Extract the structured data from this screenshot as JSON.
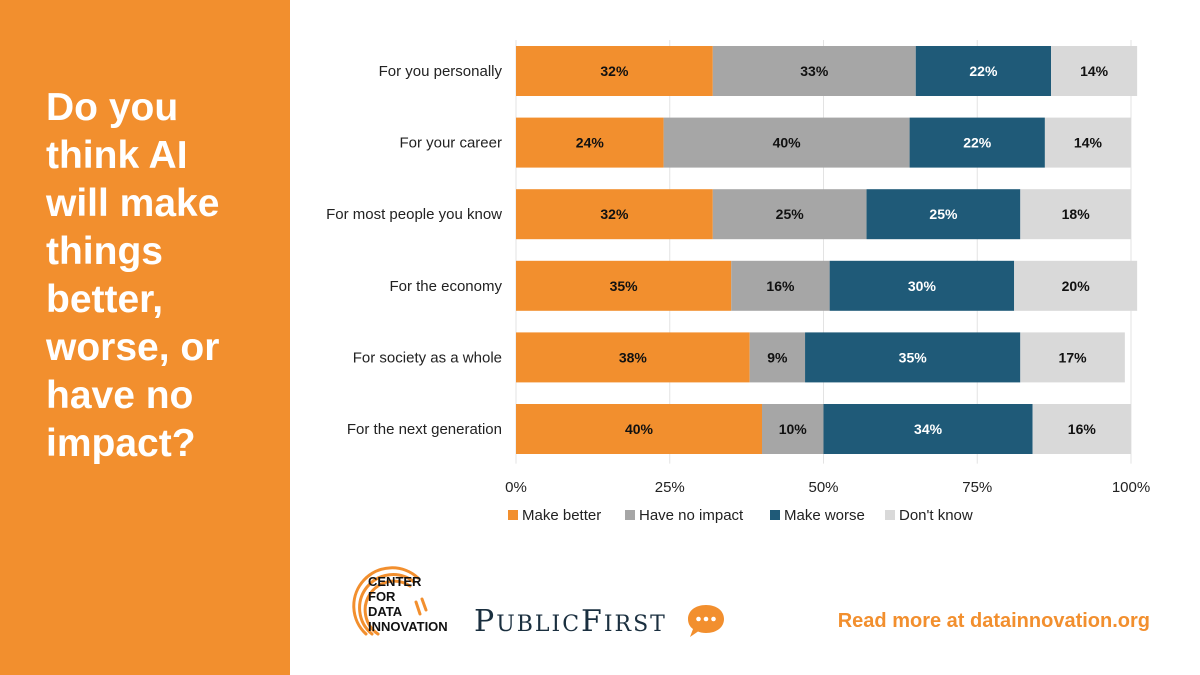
{
  "colors": {
    "panel": "#f28f2e",
    "make_better": "#f28f2e",
    "no_impact": "#a6a6a6",
    "make_worse": "#1f5a78",
    "dont_know": "#d9d9d9"
  },
  "question": "Do you\nthink AI\nwill make\nthings\nbetter,\nworse, or\nhave no\nimpact?",
  "chart_data": {
    "type": "bar",
    "orientation": "horizontal",
    "stacked": true,
    "categories": [
      "For you personally",
      "For your career",
      "For most people you know",
      "For the economy",
      "For society as a whole",
      "For the next generation"
    ],
    "series": [
      {
        "name": "Make better",
        "values": [
          32,
          24,
          32,
          35,
          38,
          40
        ]
      },
      {
        "name": "Have no impact",
        "values": [
          33,
          40,
          25,
          16,
          9,
          10
        ]
      },
      {
        "name": "Make worse",
        "values": [
          22,
          22,
          25,
          30,
          35,
          34
        ]
      },
      {
        "name": "Don't know",
        "values": [
          14,
          14,
          18,
          20,
          17,
          16
        ]
      }
    ],
    "xlim": [
      0,
      100
    ],
    "xticks": [
      "0%",
      "25%",
      "50%",
      "75%",
      "100%"
    ],
    "legend_position": "bottom",
    "grid": "vertical"
  },
  "footer": {
    "cdi_text": "CENTER\nFOR\nDATA\nINNOVATION",
    "pf_text": "PUBLICFIRST",
    "cta": "Read more at datainnovation.org"
  }
}
